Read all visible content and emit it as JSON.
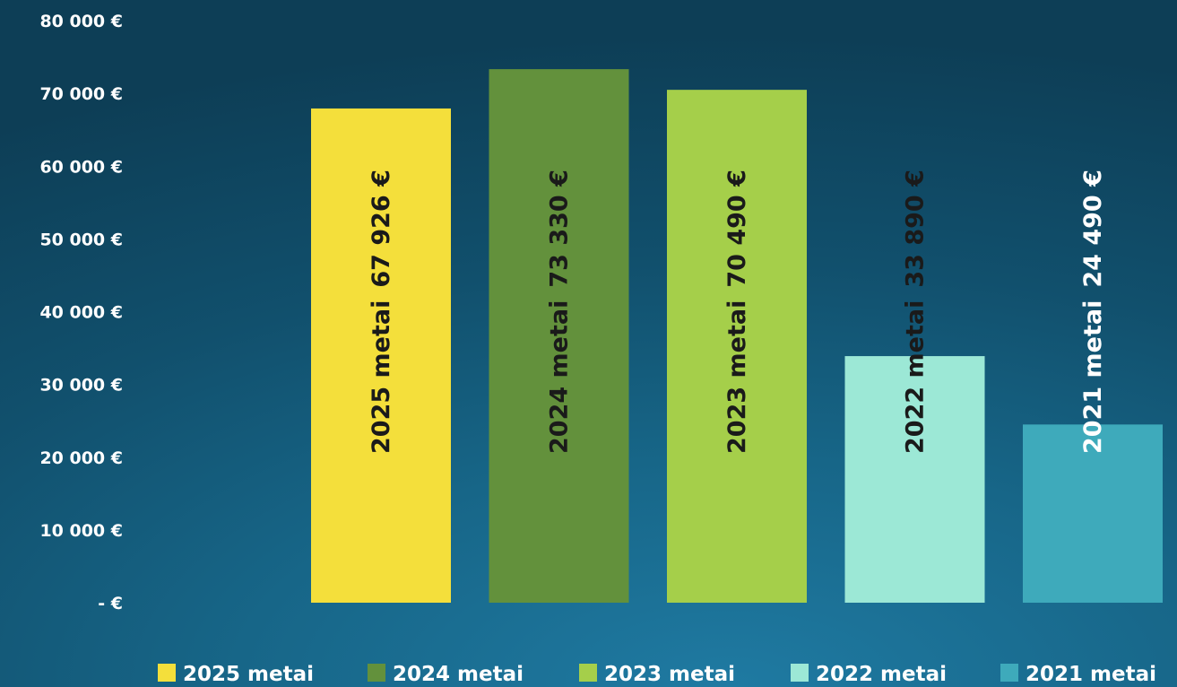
{
  "chart_data": {
    "type": "bar",
    "title": "",
    "xlabel": "",
    "ylabel": "",
    "ylim": [
      0,
      80000
    ],
    "y_ticks": [
      {
        "value": 80000,
        "label": "80 000 €"
      },
      {
        "value": 70000,
        "label": "70 000 €"
      },
      {
        "value": 60000,
        "label": "60 000 €"
      },
      {
        "value": 50000,
        "label": "50 000 €"
      },
      {
        "value": 40000,
        "label": "40 000 €"
      },
      {
        "value": 30000,
        "label": "30 000 €"
      },
      {
        "value": 20000,
        "label": "20 000 €"
      },
      {
        "value": 10000,
        "label": "10 000 €"
      },
      {
        "value": 0,
        "label": "-   €"
      }
    ],
    "grid": false,
    "legend_position": "bottom",
    "bars": [
      {
        "name": "2025 metai",
        "value": 67926,
        "value_label": "67 926 €",
        "color": "#f4df3b",
        "label_color": "#1a1a1a"
      },
      {
        "name": "2024 metai",
        "value": 73330,
        "value_label": "73 330 €",
        "color": "#63913c",
        "label_color": "#1a1a1a"
      },
      {
        "name": "2023 metai",
        "value": 70490,
        "value_label": "70 490 €",
        "color": "#a5cf4a",
        "label_color": "#1a1a1a"
      },
      {
        "name": "2022 metai",
        "value": 33890,
        "value_label": "33 890 €",
        "color": "#9ce8d6",
        "label_color": "#1a1a1a"
      },
      {
        "name": "2021 metai",
        "value": 24490,
        "value_label": "24 490 €",
        "color": "#3eaabb",
        "label_color": "#ffffff"
      }
    ]
  }
}
